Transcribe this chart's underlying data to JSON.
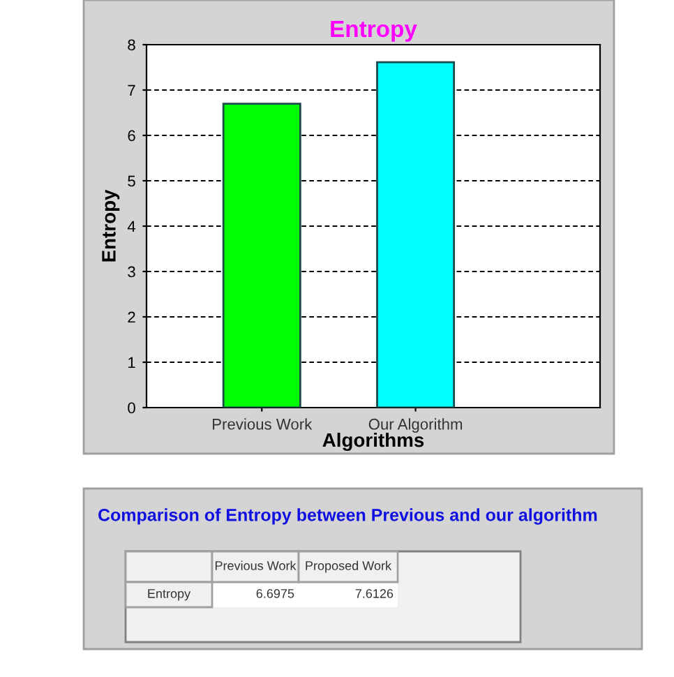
{
  "chart_data": {
    "type": "bar",
    "title": "Entropy",
    "xlabel": "Algorithms",
    "ylabel": "Entropy",
    "categories": [
      "Previous Work",
      "Our Algorithm"
    ],
    "values": [
      6.6975,
      7.6126
    ],
    "colors": [
      "#00ff00",
      "#00ffff"
    ],
    "value_labels": [
      "6.6975",
      "7.6126"
    ],
    "ylim": [
      0,
      8
    ],
    "yticks": [
      0,
      1,
      2,
      3,
      4,
      5,
      6,
      7,
      8
    ],
    "grid": "y",
    "line_style": "dashed",
    "annotations": [
      "Comparison of Entropy between Previous and our algorithm",
      "Previous Work",
      "Proposed Work",
      "Entropy"
    ]
  }
}
